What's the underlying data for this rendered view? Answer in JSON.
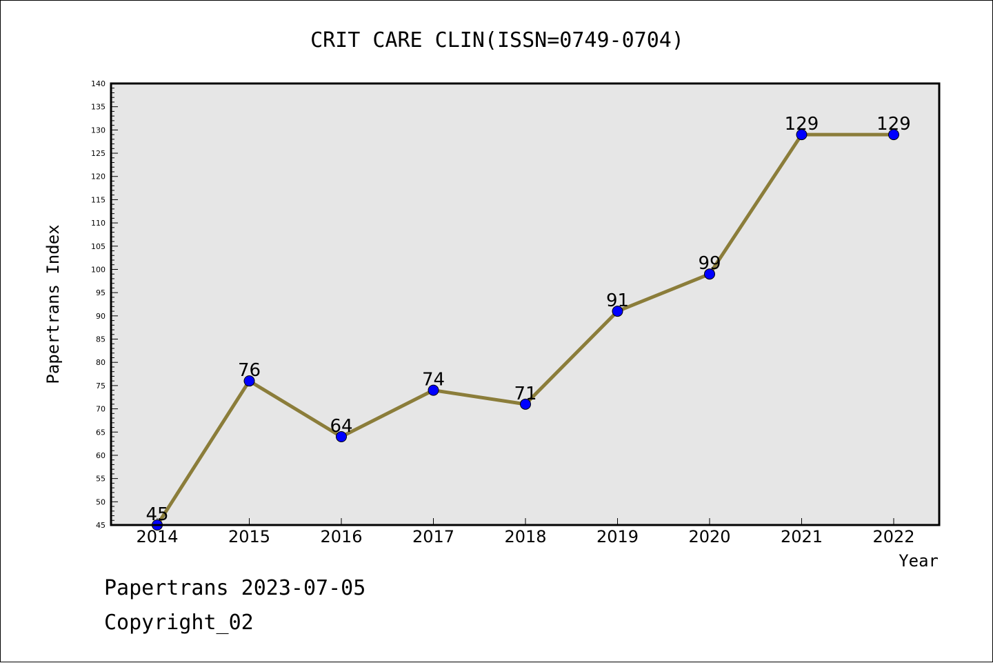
{
  "chart_data": {
    "type": "line",
    "title": "CRIT CARE CLIN(ISSN=0749-0704)",
    "xlabel": "Year",
    "ylabel": "Papertrans Index",
    "categories": [
      "2014",
      "2015",
      "2016",
      "2017",
      "2018",
      "2019",
      "2020",
      "2021",
      "2022"
    ],
    "series": [
      {
        "values": [
          45,
          76,
          64,
          74,
          71,
          91,
          99,
          129,
          129
        ]
      }
    ],
    "data_labels": [
      "45",
      "76",
      "64",
      "74",
      "71",
      "91",
      "99",
      "129",
      "129"
    ],
    "ylim": [
      45,
      140
    ],
    "yticks": [
      45,
      50,
      55,
      60,
      65,
      70,
      75,
      80,
      85,
      90,
      95,
      100,
      105,
      110,
      115,
      120,
      125,
      130,
      135,
      140
    ],
    "grid": false,
    "colors": {
      "line": "#8b7d3a",
      "marker": "#0000ff",
      "plot_bg": "#e6e6e6"
    }
  },
  "footer": {
    "line1": "Papertrans 2023-07-05",
    "line2": "Copyright_02"
  }
}
